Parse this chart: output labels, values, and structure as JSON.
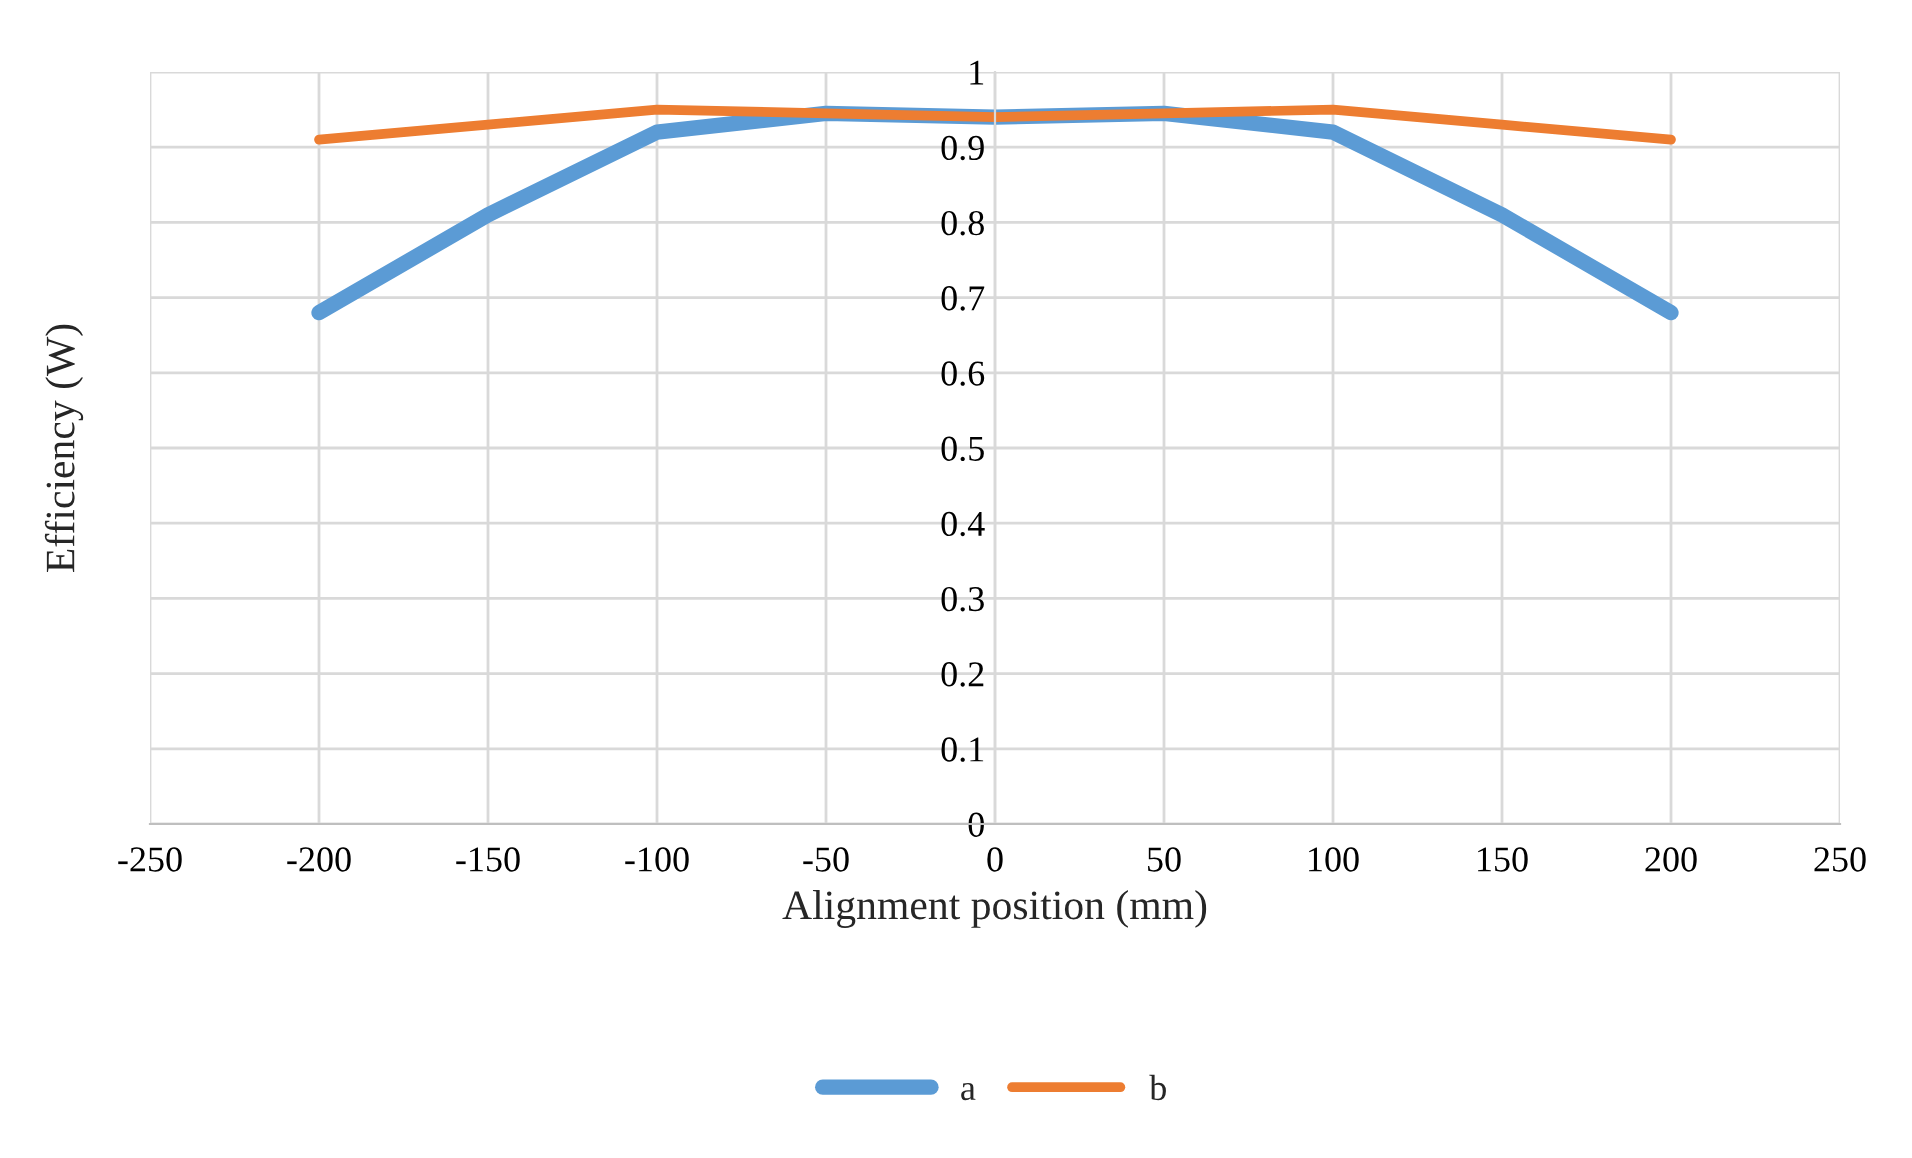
{
  "chart_data": {
    "type": "line",
    "xlabel": "Alignment position (mm)",
    "ylabel": "Efficiency (W)",
    "x": [
      -200,
      -150,
      -100,
      -50,
      0,
      50,
      100,
      150,
      200
    ],
    "series": [
      {
        "name": "a",
        "color": "#5b9bd5",
        "values": [
          0.68,
          0.81,
          0.92,
          0.945,
          0.94,
          0.945,
          0.92,
          0.81,
          0.68
        ]
      },
      {
        "name": "b",
        "color": "#ed7d31",
        "values": [
          0.91,
          0.93,
          0.95,
          0.945,
          0.94,
          0.945,
          0.95,
          0.93,
          0.91
        ]
      }
    ],
    "xlim": [
      -250,
      250
    ],
    "xticks": [
      -250,
      -200,
      -150,
      -100,
      -50,
      0,
      50,
      100,
      150,
      200,
      250
    ],
    "ylim": [
      0,
      1
    ],
    "yticks": [
      0,
      0.1,
      0.2,
      0.3,
      0.4,
      0.5,
      0.6,
      0.7,
      0.8,
      0.9,
      1
    ],
    "grid": true,
    "legend": "bottom",
    "marker": "none",
    "line_style": "solid"
  }
}
